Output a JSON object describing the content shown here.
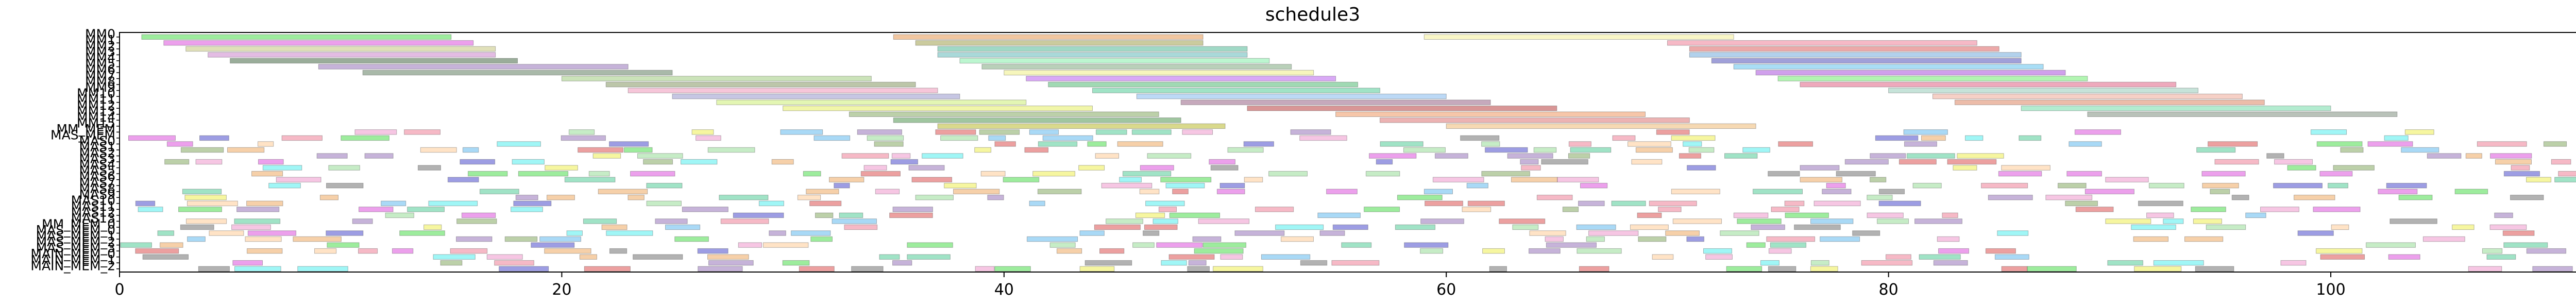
{
  "chart_data": {
    "type": "gantt",
    "title": "schedule3",
    "xlabel": "",
    "ylabel": "",
    "xlim": [
      0,
      113
    ],
    "x_ticks": [
      0,
      20,
      40,
      60,
      80,
      100
    ],
    "grid": false,
    "rows": [
      "MM0",
      "MM1",
      "MM2",
      "MM3",
      "MM4",
      "MM5",
      "MM6",
      "MM7",
      "MM8",
      "MM9",
      "MM10",
      "MM11",
      "MM12",
      "MM13",
      "MM14",
      "MM15",
      "MM_MEM",
      "MAS_MEM",
      "MAS0",
      "MAS1",
      "MAS2",
      "MAS3",
      "MAS4",
      "MAS5",
      "MAS6",
      "MAS7",
      "MAS8",
      "MAS9",
      "MAS10",
      "MAS11",
      "MAS12",
      "MAS13",
      "MM_MEM_0",
      "MAS_MEM_0",
      "MAS_MEM_1",
      "MAS_MEM_2",
      "MAS_MEM_3",
      "MAIN_MEM_0",
      "MAIN_MEM_1",
      "MAIN_MEM_2"
    ],
    "tasks": [
      {
        "row": "MM0",
        "start": 1.0,
        "end": 15.0,
        "color": "#5be05b"
      },
      {
        "row": "MM0",
        "start": 35.0,
        "end": 49.0,
        "color": "#e8a060"
      },
      {
        "row": "MM0",
        "start": 59.0,
        "end": 73.0,
        "color": "#f5f0a0"
      },
      {
        "row": "MM1",
        "start": 2.0,
        "end": 16.0,
        "color": "#e060e0"
      },
      {
        "row": "MM1",
        "start": 36.0,
        "end": 49.0,
        "color": "#a9a95e"
      },
      {
        "row": "MM1",
        "start": 70.0,
        "end": 84.0,
        "color": "#f08aa0"
      },
      {
        "row": "MM2",
        "start": 3.0,
        "end": 17.0,
        "color": "#cccc8a"
      },
      {
        "row": "MM2",
        "start": 37.0,
        "end": 51.0,
        "color": "#60c0a0"
      },
      {
        "row": "MM2",
        "start": 71.0,
        "end": 85.0,
        "color": "#e07070"
      },
      {
        "row": "MM3",
        "start": 4.0,
        "end": 17.0,
        "color": "#d090d0"
      },
      {
        "row": "MM3",
        "start": 37.0,
        "end": 51.0,
        "color": "#70c0c0"
      },
      {
        "row": "MM3",
        "start": 71.0,
        "end": 86.0,
        "color": "#7fb2e0"
      },
      {
        "row": "MM4",
        "start": 5.0,
        "end": 18.0,
        "color": "#567756"
      },
      {
        "row": "MM4",
        "start": 38.0,
        "end": 52.0,
        "color": "#90f0b0"
      },
      {
        "row": "MM4",
        "start": 72.0,
        "end": 86.0,
        "color": "#6060c0"
      },
      {
        "row": "MM5",
        "start": 9.0,
        "end": 23.0,
        "color": "#a080c0"
      },
      {
        "row": "MM5",
        "start": 39.0,
        "end": 53.0,
        "color": "#8ab08a"
      },
      {
        "row": "MM5",
        "start": 73.0,
        "end": 87.0,
        "color": "#70c8f0"
      },
      {
        "row": "MM6",
        "start": 11.0,
        "end": 25.0,
        "color": "#708a70"
      },
      {
        "row": "MM6",
        "start": 40.0,
        "end": 54.0,
        "color": "#f0f090"
      },
      {
        "row": "MM6",
        "start": 74.0,
        "end": 88.0,
        "color": "#b060e0"
      },
      {
        "row": "MM7",
        "start": 20.0,
        "end": 34.0,
        "color": "#a8d08a"
      },
      {
        "row": "MM7",
        "start": 41.0,
        "end": 55.0,
        "color": "#c070f0"
      },
      {
        "row": "MM7",
        "start": 75.0,
        "end": 89.0,
        "color": "#7fee7f"
      },
      {
        "row": "MM8",
        "start": 22.0,
        "end": 36.0,
        "color": "#90a070"
      },
      {
        "row": "MM8",
        "start": 42.0,
        "end": 56.0,
        "color": "#60c080"
      },
      {
        "row": "MM8",
        "start": 76.0,
        "end": 93.0,
        "color": "#e27090"
      },
      {
        "row": "MM9",
        "start": 23.0,
        "end": 37.0,
        "color": "#f0a0c0"
      },
      {
        "row": "MM9",
        "start": 44.0,
        "end": 57.0,
        "color": "#60d0a0"
      },
      {
        "row": "MM9",
        "start": 80.0,
        "end": 94.0,
        "color": "#a0d0c0"
      },
      {
        "row": "MM10",
        "start": 25.0,
        "end": 38.0,
        "color": "#a0a0d0"
      },
      {
        "row": "MM10",
        "start": 46.0,
        "end": 60.0,
        "color": "#90c0f0"
      },
      {
        "row": "MM10",
        "start": 82.0,
        "end": 96.0,
        "color": "#f0b0a0"
      },
      {
        "row": "MM11",
        "start": 27.0,
        "end": 41.0,
        "color": "#d0f080"
      },
      {
        "row": "MM11",
        "start": 48.0,
        "end": 62.0,
        "color": "#a07090"
      },
      {
        "row": "MM11",
        "start": 83.0,
        "end": 97.0,
        "color": "#e09070"
      },
      {
        "row": "MM12",
        "start": 30.0,
        "end": 44.0,
        "color": "#e8f070"
      },
      {
        "row": "MM12",
        "start": 51.0,
        "end": 65.0,
        "color": "#c05050"
      },
      {
        "row": "MM12",
        "start": 86.0,
        "end": 100.0,
        "color": "#80e0b0"
      },
      {
        "row": "MM13",
        "start": 33.0,
        "end": 47.0,
        "color": "#90b070"
      },
      {
        "row": "MM13",
        "start": 55.0,
        "end": 69.0,
        "color": "#f0a070"
      },
      {
        "row": "MM13",
        "start": 89.0,
        "end": 103.0,
        "color": "#8a9a8a"
      },
      {
        "row": "MM14",
        "start": 35.0,
        "end": 48.0,
        "color": "#60a060"
      },
      {
        "row": "MM14",
        "start": 57.0,
        "end": 71.0,
        "color": "#e08080"
      },
      {
        "row": "MM15",
        "start": 37.0,
        "end": 50.0,
        "color": "#c0c040"
      },
      {
        "row": "MM15",
        "start": 60.0,
        "end": 74.0,
        "color": "#f0c080"
      }
    ],
    "filler": {
      "rows_start": "MM_MEM",
      "x_range": [
        0,
        113
      ],
      "palette": [
        "#e060e0",
        "#5be05b",
        "#5b5bd0",
        "#f08aa0",
        "#60d0a0",
        "#f0f060",
        "#70c0f0",
        "#f0b070",
        "#a080c0",
        "#e06060",
        "#60f0f0",
        "#90b070",
        "#f0a0d0",
        "#7f7f7f",
        "#a0e0a0",
        "#ffd0a0"
      ]
    }
  }
}
